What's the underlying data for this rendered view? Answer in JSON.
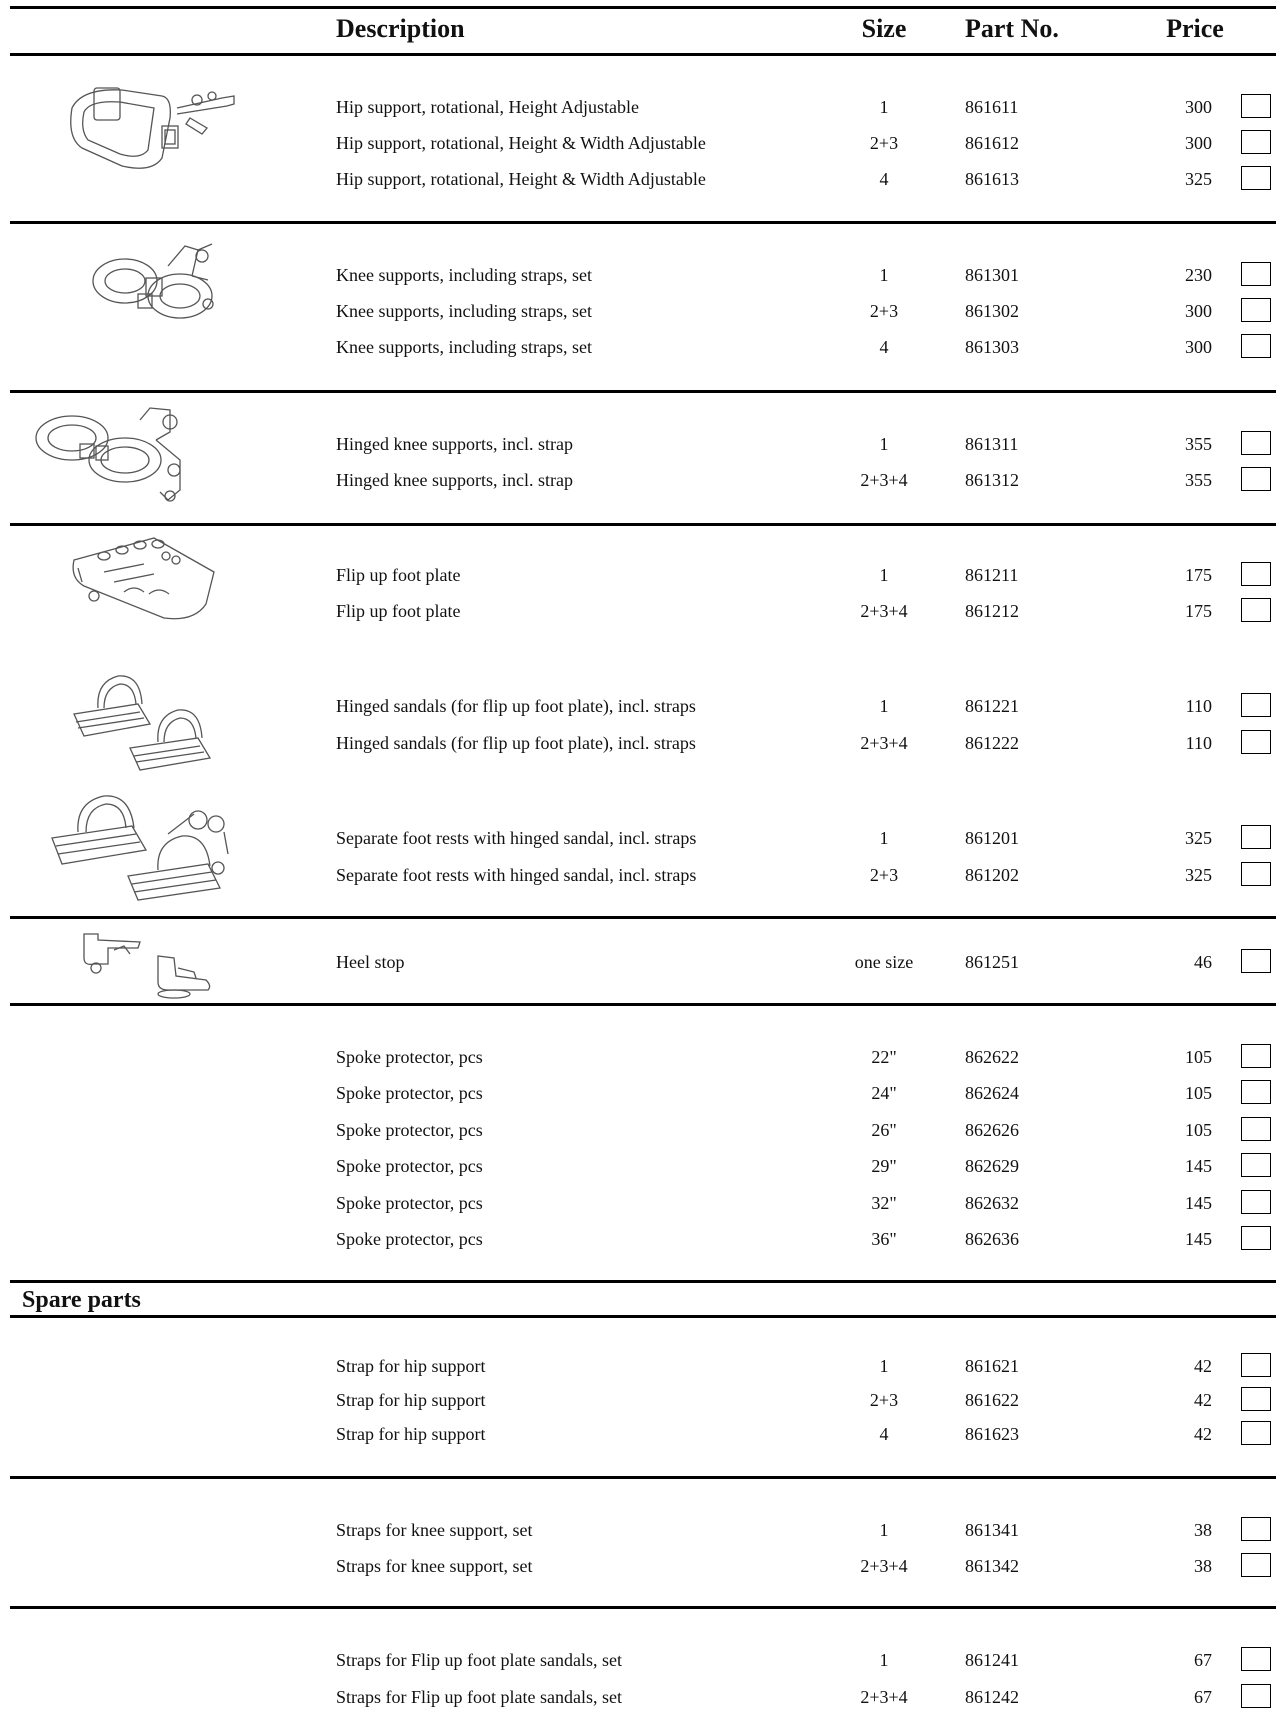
{
  "header": {
    "description": "Description",
    "size": "Size",
    "part_no": "Part No.",
    "price": "Price"
  },
  "groups": [
    {
      "id": "hip",
      "illustration": "hip-support-illustration",
      "rows": [
        {
          "description": "Hip support, rotational, Height Adjustable",
          "size": "1",
          "part_no": "861611",
          "price": "300"
        },
        {
          "description": "Hip support, rotational, Height & Width Adjustable",
          "size": "2+3",
          "part_no": "861612",
          "price": "300"
        },
        {
          "description": "Hip support, rotational, Height & Width Adjustable",
          "size": "4",
          "part_no": "861613",
          "price": "325"
        }
      ]
    },
    {
      "id": "knee",
      "illustration": "knee-supports-illustration",
      "rows": [
        {
          "description": "Knee supports, including straps, set",
          "size": "1",
          "part_no": "861301",
          "price": "230"
        },
        {
          "description": "Knee supports, including straps, set",
          "size": "2+3",
          "part_no": "861302",
          "price": "300"
        },
        {
          "description": "Knee supports, including straps, set",
          "size": "4",
          "part_no": "861303",
          "price": "300"
        }
      ]
    },
    {
      "id": "hinged-knee",
      "illustration": "hinged-knee-supports-illustration",
      "rows": [
        {
          "description": "Hinged knee supports, incl. strap",
          "size": "1",
          "part_no": "861311",
          "price": "355"
        },
        {
          "description": "Hinged knee supports, incl. strap",
          "size": "2+3+4",
          "part_no": "861312",
          "price": "355"
        }
      ]
    },
    {
      "id": "foot-plate",
      "illustration": "flip-up-foot-plate-illustration",
      "rows": [
        {
          "description": "Flip up foot plate",
          "size": "1",
          "part_no": "861211",
          "price": "175"
        },
        {
          "description": "Flip up foot plate",
          "size": "2+3+4",
          "part_no": "861212",
          "price": "175"
        }
      ]
    },
    {
      "id": "sandals",
      "illustration": "hinged-sandals-illustration",
      "rows": [
        {
          "description": "Hinged sandals (for flip up foot plate), incl. straps",
          "size": "1",
          "part_no": "861221",
          "price": "110"
        },
        {
          "description": "Hinged sandals (for flip up foot plate), incl. straps",
          "size": "2+3+4",
          "part_no": "861222",
          "price": "110"
        }
      ]
    },
    {
      "id": "foot-rests",
      "illustration": "separate-foot-rests-illustration",
      "rows": [
        {
          "description": "Separate foot rests with hinged sandal, incl. straps",
          "size": "1",
          "part_no": "861201",
          "price": "325"
        },
        {
          "description": "Separate foot rests with hinged sandal, incl. straps",
          "size": "2+3",
          "part_no": "861202",
          "price": "325"
        }
      ]
    },
    {
      "id": "heel",
      "illustration": "heel-stop-illustration",
      "rows": [
        {
          "description": "Heel stop",
          "size": "one size",
          "part_no": "861251",
          "price": "46"
        }
      ]
    },
    {
      "id": "spoke",
      "rows": [
        {
          "description": "Spoke protector, pcs",
          "size": "22\"",
          "part_no": "862622",
          "price": "105"
        },
        {
          "description": "Spoke protector, pcs",
          "size": "24\"",
          "part_no": "862624",
          "price": "105"
        },
        {
          "description": "Spoke protector, pcs",
          "size": "26\"",
          "part_no": "862626",
          "price": "105"
        },
        {
          "description": "Spoke protector, pcs",
          "size": "29\"",
          "part_no": "862629",
          "price": "145"
        },
        {
          "description": "Spoke protector, pcs",
          "size": "32\"",
          "part_no": "862632",
          "price": "145"
        },
        {
          "description": "Spoke protector, pcs",
          "size": "36\"",
          "part_no": "862636",
          "price": "145"
        }
      ]
    }
  ],
  "spare_parts": {
    "title": "Spare parts",
    "groups": [
      {
        "id": "hip-strap",
        "rows": [
          {
            "description": "Strap for hip support",
            "size": "1",
            "part_no": "861621",
            "price": "42"
          },
          {
            "description": "Strap for hip support",
            "size": "2+3",
            "part_no": "861622",
            "price": "42"
          },
          {
            "description": "Strap for hip support",
            "size": "4",
            "part_no": "861623",
            "price": "42"
          }
        ]
      },
      {
        "id": "knee-straps",
        "rows": [
          {
            "description": "Straps for knee support, set",
            "size": "1",
            "part_no": "861341",
            "price": "38"
          },
          {
            "description": "Straps for knee support, set",
            "size": "2+3+4",
            "part_no": "861342",
            "price": "38"
          }
        ]
      },
      {
        "id": "sandal-straps",
        "rows": [
          {
            "description": "Straps for Flip up foot plate sandals, set",
            "size": "1",
            "part_no": "861241",
            "price": "67"
          },
          {
            "description": "Straps for Flip up foot plate sandals, set",
            "size": "2+3+4",
            "part_no": "861242",
            "price": "67"
          }
        ]
      }
    ]
  }
}
